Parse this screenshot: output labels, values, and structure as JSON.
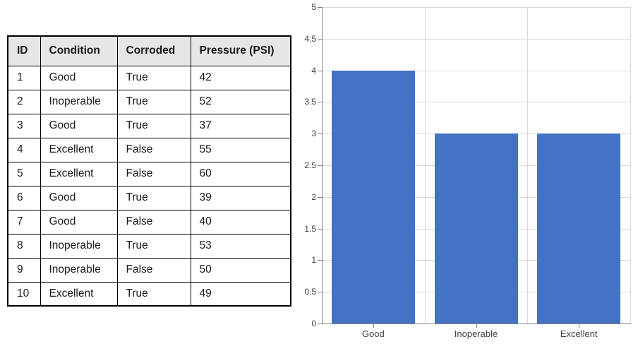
{
  "page": {
    "background": "#ffffff"
  },
  "table": {
    "columns": [
      "ID",
      "Condition",
      "Corroded",
      "Pressure (PSI)"
    ],
    "rows": [
      [
        "1",
        "Good",
        "True",
        "42"
      ],
      [
        "2",
        "Inoperable",
        "True",
        "52"
      ],
      [
        "3",
        "Good",
        "True",
        "37"
      ],
      [
        "4",
        "Excellent",
        "False",
        "55"
      ],
      [
        "5",
        "Excellent",
        "False",
        "60"
      ],
      [
        "6",
        "Good",
        "True",
        "39"
      ],
      [
        "7",
        "Good",
        "False",
        "40"
      ],
      [
        "8",
        "Inoperable",
        "True",
        "53"
      ],
      [
        "9",
        "Inoperable",
        "False",
        "50"
      ],
      [
        "10",
        "Excellent",
        "True",
        "49"
      ]
    ],
    "header_bg": "#E7E6E6",
    "border_color": "#000000"
  },
  "chart_data": {
    "type": "bar",
    "categories": [
      "Good",
      "Inoperable",
      "Excellent"
    ],
    "values": [
      4,
      3,
      3
    ],
    "title": "",
    "xlabel": "",
    "ylabel": "",
    "ylim": [
      0,
      5
    ],
    "ytick_step": 0.5,
    "ytick_labels": [
      "0",
      "0.5",
      "1",
      "1.5",
      "2",
      "2.5",
      "3",
      "3.5",
      "4",
      "4.5",
      "5"
    ],
    "grid": true,
    "legend_position": "none",
    "bar_color": "#4472C4",
    "gridline_color": "#D9D9D9",
    "axis_color": "#808080",
    "label_color": "#404040"
  }
}
